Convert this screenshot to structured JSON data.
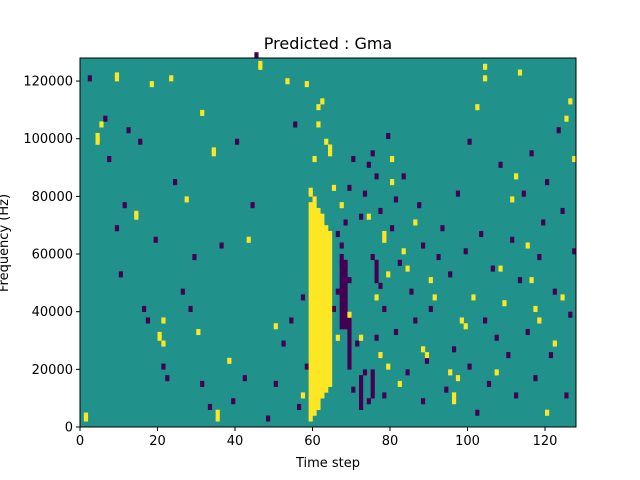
{
  "chart_data": {
    "type": "heatmap",
    "title": "Predicted : Gma",
    "xlabel": "Time step",
    "ylabel": "Frequency (Hz)",
    "xlim": [
      0,
      128
    ],
    "ylim": [
      0,
      128000
    ],
    "xticks": [
      0,
      20,
      40,
      60,
      80,
      100,
      120
    ],
    "yticks": [
      0,
      20000,
      40000,
      60000,
      80000,
      100000,
      120000
    ],
    "grid": false,
    "legend": "none",
    "colors": {
      "background": "#21918c",
      "high": "#fde725",
      "low": "#440154"
    },
    "shape": {
      "time_steps": 128,
      "frequency_bins": 128
    },
    "background_value": 0,
    "values_note_levels": {
      "low": -1,
      "mid": 0,
      "high": 1
    },
    "high_cells": [
      [
        1,
        2
      ],
      [
        1,
        3
      ],
      [
        4,
        98
      ],
      [
        4,
        99
      ],
      [
        4,
        100
      ],
      [
        5,
        104
      ],
      [
        9,
        120
      ],
      [
        9,
        121
      ],
      [
        14,
        72
      ],
      [
        14,
        73
      ],
      [
        18,
        118
      ],
      [
        20,
        30
      ],
      [
        20,
        31
      ],
      [
        21,
        28
      ],
      [
        21,
        36
      ],
      [
        23,
        120
      ],
      [
        27,
        78
      ],
      [
        30,
        32
      ],
      [
        31,
        108
      ],
      [
        34,
        94
      ],
      [
        34,
        95
      ],
      [
        35,
        2
      ],
      [
        35,
        4
      ],
      [
        38,
        22
      ],
      [
        43,
        64
      ],
      [
        46,
        124
      ],
      [
        46,
        125
      ],
      [
        50,
        34
      ],
      [
        53,
        119
      ],
      [
        57,
        10
      ],
      [
        58,
        118
      ],
      [
        59,
        80
      ],
      [
        59,
        81
      ],
      [
        60,
        92
      ],
      [
        61,
        104
      ],
      [
        61,
        110
      ],
      [
        62,
        112
      ],
      [
        63,
        98
      ],
      [
        64,
        94
      ],
      [
        64,
        96
      ],
      [
        65,
        82
      ],
      [
        66,
        30
      ],
      [
        67,
        76
      ],
      [
        69,
        38
      ],
      [
        72,
        30
      ],
      [
        74,
        72
      ],
      [
        76,
        44
      ],
      [
        77,
        24
      ],
      [
        78,
        64
      ],
      [
        78,
        66
      ],
      [
        79,
        20
      ],
      [
        79,
        52
      ],
      [
        80,
        84
      ],
      [
        80,
        92
      ],
      [
        82,
        14
      ],
      [
        83,
        60
      ],
      [
        84,
        54
      ],
      [
        86,
        70
      ],
      [
        88,
        26
      ],
      [
        89,
        24
      ],
      [
        90,
        50
      ],
      [
        91,
        44
      ],
      [
        95,
        18
      ],
      [
        96,
        8
      ],
      [
        96,
        10
      ],
      [
        97,
        16
      ],
      [
        98,
        36
      ],
      [
        99,
        34
      ],
      [
        101,
        44
      ],
      [
        102,
        110
      ],
      [
        104,
        120
      ],
      [
        104,
        124
      ],
      [
        107,
        18
      ],
      [
        108,
        54
      ],
      [
        109,
        42
      ],
      [
        111,
        78
      ],
      [
        112,
        86
      ],
      [
        113,
        122
      ],
      [
        115,
        62
      ],
      [
        116,
        50
      ],
      [
        117,
        40
      ],
      [
        118,
        36
      ],
      [
        120,
        4
      ],
      [
        122,
        28
      ],
      [
        124,
        44
      ],
      [
        125,
        106
      ],
      [
        126,
        112
      ],
      [
        127,
        92
      ]
    ],
    "high_bands": [
      {
        "x": 59,
        "y0": 2,
        "y1": 78
      },
      {
        "x": 60,
        "y0": 4,
        "y1": 80
      },
      {
        "x": 61,
        "y0": 6,
        "y1": 76
      },
      {
        "x": 62,
        "y0": 10,
        "y1": 74
      },
      {
        "x": 63,
        "y0": 12,
        "y1": 70
      },
      {
        "x": 64,
        "y0": 14,
        "y1": 68
      }
    ],
    "low_cells": [
      [
        2,
        120
      ],
      [
        6,
        106
      ],
      [
        7,
        92
      ],
      [
        9,
        68
      ],
      [
        10,
        52
      ],
      [
        11,
        76
      ],
      [
        12,
        102
      ],
      [
        15,
        98
      ],
      [
        16,
        40
      ],
      [
        17,
        36
      ],
      [
        19,
        64
      ],
      [
        21,
        20
      ],
      [
        22,
        16
      ],
      [
        24,
        84
      ],
      [
        26,
        46
      ],
      [
        28,
        40
      ],
      [
        29,
        58
      ],
      [
        31,
        14
      ],
      [
        33,
        6
      ],
      [
        36,
        62
      ],
      [
        39,
        8
      ],
      [
        40,
        98
      ],
      [
        42,
        16
      ],
      [
        44,
        76
      ],
      [
        45,
        128
      ],
      [
        48,
        2
      ],
      [
        50,
        14
      ],
      [
        52,
        28
      ],
      [
        54,
        36
      ],
      [
        55,
        104
      ],
      [
        56,
        6
      ],
      [
        57,
        44
      ],
      [
        58,
        20
      ],
      [
        65,
        40
      ],
      [
        66,
        46
      ],
      [
        66,
        66
      ],
      [
        67,
        56
      ],
      [
        67,
        62
      ],
      [
        68,
        34
      ],
      [
        68,
        70
      ],
      [
        69,
        50
      ],
      [
        69,
        82
      ],
      [
        70,
        12
      ],
      [
        70,
        92
      ],
      [
        71,
        28
      ],
      [
        72,
        72
      ],
      [
        73,
        18
      ],
      [
        73,
        80
      ],
      [
        74,
        8
      ],
      [
        74,
        90
      ],
      [
        75,
        58
      ],
      [
        75,
        94
      ],
      [
        76,
        30
      ],
      [
        76,
        86
      ],
      [
        77,
        48
      ],
      [
        77,
        74
      ],
      [
        78,
        10
      ],
      [
        78,
        40
      ],
      [
        79,
        100
      ],
      [
        80,
        68
      ],
      [
        81,
        32
      ],
      [
        81,
        78
      ],
      [
        82,
        56
      ],
      [
        83,
        86
      ],
      [
        84,
        18
      ],
      [
        85,
        46
      ],
      [
        86,
        36
      ],
      [
        87,
        76
      ],
      [
        88,
        8
      ],
      [
        88,
        62
      ],
      [
        89,
        22
      ],
      [
        90,
        40
      ],
      [
        92,
        58
      ],
      [
        93,
        68
      ],
      [
        94,
        12
      ],
      [
        95,
        52
      ],
      [
        96,
        26
      ],
      [
        97,
        80
      ],
      [
        99,
        60
      ],
      [
        100,
        20
      ],
      [
        100,
        98
      ],
      [
        102,
        4
      ],
      [
        103,
        66
      ],
      [
        104,
        36
      ],
      [
        105,
        14
      ],
      [
        106,
        54
      ],
      [
        107,
        30
      ],
      [
        108,
        90
      ],
      [
        110,
        24
      ],
      [
        111,
        64
      ],
      [
        112,
        10
      ],
      [
        113,
        50
      ],
      [
        114,
        80
      ],
      [
        115,
        32
      ],
      [
        116,
        94
      ],
      [
        117,
        16
      ],
      [
        118,
        58
      ],
      [
        119,
        70
      ],
      [
        120,
        84
      ],
      [
        121,
        24
      ],
      [
        122,
        46
      ],
      [
        123,
        102
      ],
      [
        124,
        74
      ],
      [
        125,
        10
      ],
      [
        126,
        38
      ],
      [
        127,
        60
      ]
    ],
    "low_bands": [
      {
        "x": 67,
        "y0": 34,
        "y1": 60
      },
      {
        "x": 68,
        "y0": 36,
        "y1": 58
      },
      {
        "x": 69,
        "y0": 20,
        "y1": 40
      },
      {
        "x": 72,
        "y0": 6,
        "y1": 18
      },
      {
        "x": 75,
        "y0": 10,
        "y1": 20
      },
      {
        "x": 76,
        "y0": 50,
        "y1": 58
      }
    ]
  }
}
